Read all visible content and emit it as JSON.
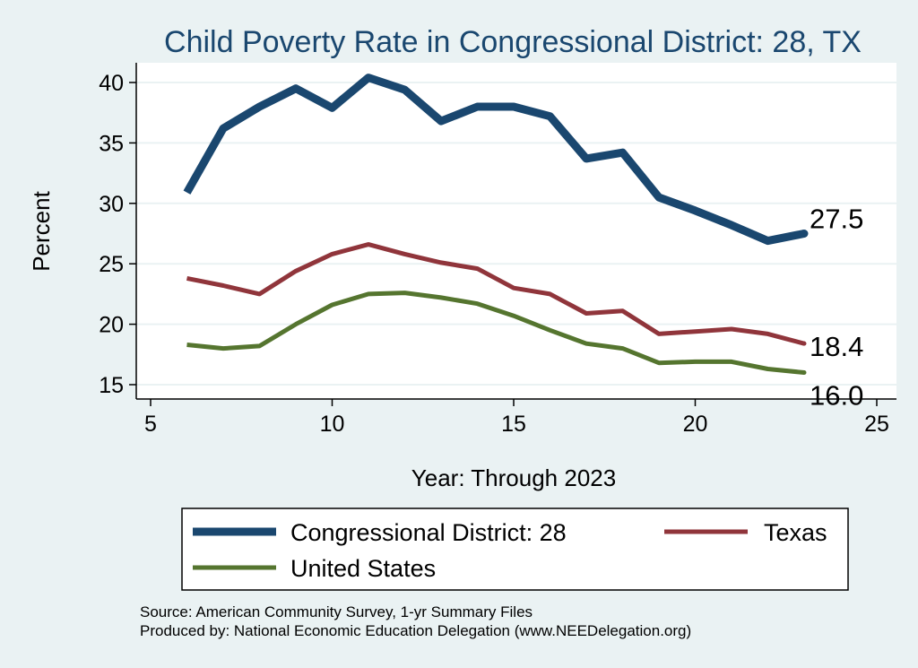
{
  "chart_data": {
    "type": "line",
    "title": "Child Poverty Rate in Congressional District:  28, TX",
    "xlabel": "Year: Through 2023",
    "ylabel": "Percent",
    "xlim": [
      5,
      25
    ],
    "ylim": [
      15,
      40
    ],
    "xticks": [
      "5",
      "10",
      "15",
      "20",
      "25"
    ],
    "yticks": [
      "15",
      "20",
      "25",
      "30",
      "35",
      "40"
    ],
    "grid": true,
    "legend_position": "bottom",
    "series": [
      {
        "name": "Congressional District:  28",
        "color": "#1a476f",
        "x": [
          6,
          7,
          8,
          9,
          10,
          11,
          12,
          13,
          14,
          15,
          16,
          17,
          18,
          19,
          20,
          21,
          22,
          23
        ],
        "y": [
          30.9,
          36.2,
          38.0,
          39.5,
          37.9,
          40.4,
          39.4,
          36.8,
          38.0,
          38.0,
          37.2,
          33.7,
          34.2,
          30.5,
          29.4,
          28.2,
          26.9,
          27.5
        ],
        "end_label": "27.5"
      },
      {
        "name": "Texas",
        "color": "#90353b",
        "x": [
          6,
          7,
          8,
          9,
          10,
          11,
          12,
          13,
          14,
          15,
          16,
          17,
          18,
          19,
          20,
          21,
          22,
          23
        ],
        "y": [
          23.8,
          23.2,
          22.5,
          24.4,
          25.8,
          26.6,
          25.8,
          25.1,
          24.6,
          23.0,
          22.5,
          20.9,
          21.1,
          19.2,
          19.4,
          19.6,
          19.2,
          18.4
        ],
        "end_label": "18.4"
      },
      {
        "name": "United States",
        "color": "#55752f",
        "x": [
          6,
          7,
          8,
          9,
          10,
          11,
          12,
          13,
          14,
          15,
          16,
          17,
          18,
          19,
          20,
          21,
          22,
          23
        ],
        "y": [
          18.3,
          18.0,
          18.2,
          20.0,
          21.6,
          22.5,
          22.6,
          22.2,
          21.7,
          20.7,
          19.5,
          18.4,
          18.0,
          16.8,
          16.9,
          16.9,
          16.3,
          16.0
        ],
        "end_label": "16.0"
      }
    ]
  },
  "source_line1": "Source: American Community Survey, 1-yr Summary Files",
  "source_line2": "Produced by: National Economic Education Delegation (www.NEEDelegation.org)"
}
